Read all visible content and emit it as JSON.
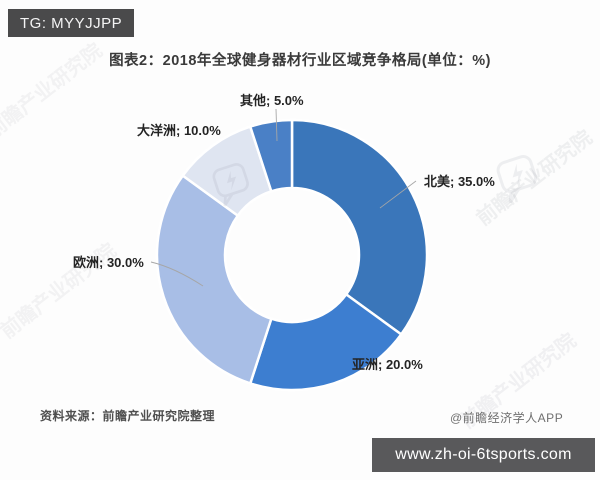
{
  "overlay": {
    "tag": "TG: MYYJJPP",
    "footer_url": "www.zh-oi-6tsports.com"
  },
  "header": {
    "title": "图表2：2018年全球健身器材行业区域竞争格局(单位：%)"
  },
  "footer": {
    "source": "资料来源：前瞻产业研究院整理",
    "brand": "@前瞻经济学人APP"
  },
  "watermark": {
    "text": "前瞻产业研究院",
    "logo_name": "qianzhan-bubble-logo"
  },
  "chart_data": {
    "type": "pie",
    "subtype": "donut",
    "title": "图表2：2018年全球健身器材行业区域竞争格局(单位：%)",
    "unit": "%",
    "start_angle_deg": 0,
    "direction": "clockwise",
    "legend_position": "none",
    "labels_outside": true,
    "categories": [
      "北美",
      "亚洲",
      "欧洲",
      "大洋洲",
      "其他"
    ],
    "values": [
      35.0,
      20.0,
      30.0,
      10.0,
      5.0
    ],
    "series": [
      {
        "key": "north-america",
        "name": "北美",
        "value": 35.0,
        "display": "北美; 35.0%",
        "color": "#3a76ba"
      },
      {
        "key": "asia",
        "name": "亚洲",
        "value": 20.0,
        "display": "亚洲; 20.0%",
        "color": "#3d7ed0"
      },
      {
        "key": "europe",
        "name": "欧洲",
        "value": 30.0,
        "display": "欧洲; 30.0%",
        "color": "#a8bee6"
      },
      {
        "key": "oceania",
        "name": "大洋洲",
        "value": 10.0,
        "display": "大洋洲; 10.0%",
        "color": "#dfe5f1"
      },
      {
        "key": "others",
        "name": "其他",
        "value": 5.0,
        "display": "其他; 5.0%",
        "color": "#4a80c6"
      }
    ]
  }
}
